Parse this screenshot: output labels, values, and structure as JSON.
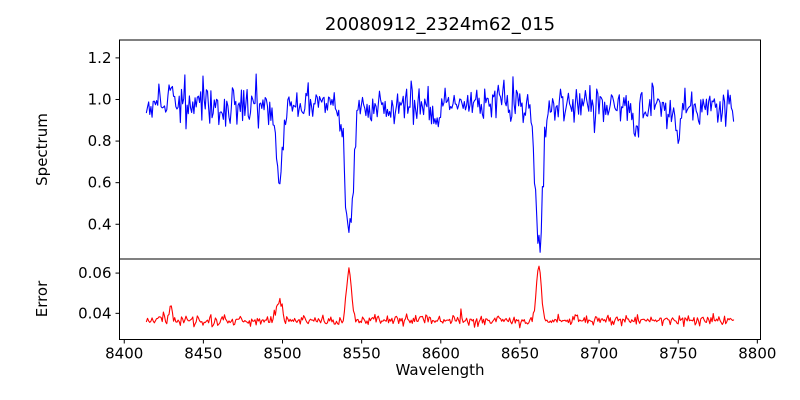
{
  "figure": {
    "background": "#ffffff"
  },
  "chart_data": {
    "type": "line",
    "title": "20080912_2324m62_015",
    "xlabel": "Wavelength",
    "grid": false,
    "legend": "none",
    "xlim": [
      8397,
      8802
    ],
    "x_ticks": {
      "values": [
        8400,
        8450,
        8500,
        8550,
        8600,
        8650,
        8700,
        8750,
        8800
      ],
      "labels": [
        "8400",
        "8450",
        "8500",
        "8550",
        "8600",
        "8650",
        "8700",
        "8750",
        "8800"
      ]
    },
    "x_data_range": [
      8414,
      8785
    ],
    "n_points": 520,
    "noise_seed": 20080912,
    "panels": [
      {
        "name": "spectrum",
        "ylabel": "Spectrum",
        "color": "#0000ff",
        "ylim": [
          0.233,
          1.286
        ],
        "y_ticks": {
          "values": [
            1.2,
            1.0,
            0.8,
            0.6,
            0.4
          ],
          "labels": [
            "1.2",
            "1.0",
            "0.8",
            "0.6",
            "0.4"
          ]
        },
        "continuum": 0.972,
        "noise_sigma": 0.046,
        "max_peak": {
          "x": 8429.5,
          "y": 1.24
        },
        "absorption_lines": [
          {
            "center": 8429.5,
            "depth": -0.18,
            "sigma": 0.8
          },
          {
            "center": 8498.0,
            "depth": 0.36,
            "sigma": 2.0
          },
          {
            "center": 8542.0,
            "depth": 0.6,
            "sigma": 2.6
          },
          {
            "center": 8598.0,
            "depth": 0.09,
            "sigma": 2.5
          },
          {
            "center": 8662.0,
            "depth": 0.655,
            "sigma": 2.3
          },
          {
            "center": 8723.0,
            "depth": 0.1,
            "sigma": 2.0
          },
          {
            "center": 8750.0,
            "depth": 0.08,
            "sigma": 2.0
          }
        ],
        "line_minima": [
          {
            "x": 8498,
            "y": 0.6
          },
          {
            "x": 8542,
            "y": 0.37
          },
          {
            "x": 8662,
            "y": 0.31
          }
        ]
      },
      {
        "name": "error",
        "ylabel": "Error",
        "color": "#ff0000",
        "ylim": [
          0.027,
          0.067
        ],
        "y_ticks": {
          "values": [
            0.06,
            0.04
          ],
          "labels": [
            "0.06",
            "0.04"
          ]
        },
        "baseline": 0.0365,
        "noise_sigma": 0.0013,
        "spikes": [
          {
            "center": 8429.5,
            "height": 0.007,
            "sigma": 1.2
          },
          {
            "center": 8498.0,
            "height": 0.0085,
            "sigma": 1.8
          },
          {
            "center": 8542.0,
            "height": 0.0255,
            "sigma": 1.5
          },
          {
            "center": 8662.0,
            "height": 0.028,
            "sigma": 1.5
          }
        ],
        "spike_maxima": [
          {
            "x": 8542,
            "y": 0.062
          },
          {
            "x": 8662,
            "y": 0.065
          }
        ]
      }
    ]
  }
}
